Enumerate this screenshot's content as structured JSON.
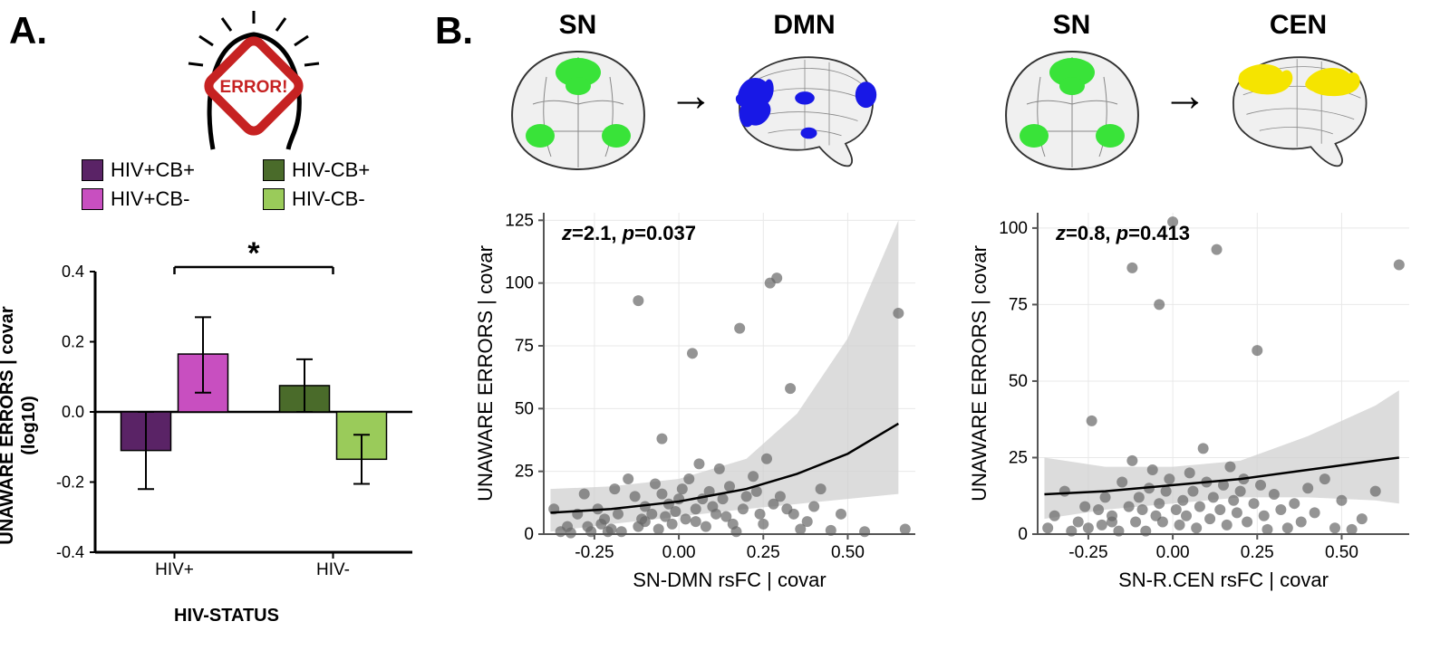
{
  "panel_labels": {
    "A": "A.",
    "B": "B."
  },
  "colors": {
    "hiv_p_cb_p": "#5a2366",
    "hiv_p_cb_m": "#c84fc0",
    "hiv_m_cb_p": "#4a6b2a",
    "hiv_m_cb_m": "#9acb5a",
    "sn_green": "#39e339",
    "dmn_blue": "#1818e6",
    "cen_yellow": "#f5e400",
    "scatter_dot": "#666666",
    "ci_fill": "#d0d0d0",
    "bg": "#ffffff"
  },
  "legend_a": {
    "items": [
      {
        "key": "hiv_p_cb_p",
        "label": "HIV+CB+"
      },
      {
        "key": "hiv_m_cb_p",
        "label": "HIV-CB+"
      },
      {
        "key": "hiv_p_cb_m",
        "label": "HIV+CB-"
      },
      {
        "key": "hiv_m_cb_m",
        "label": "HIV-CB-"
      }
    ]
  },
  "bar_chart": {
    "ylabel_line1": "UNAWARE ERRORS | covar",
    "ylabel_line2": "(log10)",
    "xlabel": "HIV-STATUS",
    "ylim": [
      -0.4,
      0.4
    ],
    "yticks": [
      -0.4,
      -0.2,
      0,
      0.2,
      0.4
    ],
    "x_groups": [
      "HIV+",
      "HIV-"
    ],
    "sig_marker": "*",
    "bars": [
      {
        "group": 0,
        "sub": 0,
        "color_key": "hiv_p_cb_p",
        "value": -0.11,
        "err_lo": 0.11,
        "err_hi": 0.11
      },
      {
        "group": 0,
        "sub": 1,
        "color_key": "hiv_p_cb_m",
        "value": 0.165,
        "err_lo": 0.11,
        "err_hi": 0.105
      },
      {
        "group": 1,
        "sub": 0,
        "color_key": "hiv_m_cb_p",
        "value": 0.075,
        "err_lo": 0.075,
        "err_hi": 0.075
      },
      {
        "group": 1,
        "sub": 1,
        "color_key": "hiv_m_cb_m",
        "value": -0.135,
        "err_lo": 0.07,
        "err_hi": 0.07
      }
    ]
  },
  "brain_labels": {
    "SN": "SN",
    "DMN": "DMN",
    "CEN": "CEN"
  },
  "error_text": "ERROR!",
  "scatter1": {
    "ylabel": "UNAWARE ERRORS | covar",
    "xlabel": "SN-DMN rsFC | covar",
    "xlim": [
      -0.4,
      0.7
    ],
    "ylim": [
      0,
      128
    ],
    "xticks": [
      -0.25,
      0.0,
      0.25,
      0.5
    ],
    "yticks": [
      0,
      25,
      50,
      75,
      100,
      125
    ],
    "stat_z": "2.1",
    "stat_p": "0.037",
    "curve": [
      [
        -0.38,
        8.5
      ],
      [
        -0.2,
        10
      ],
      [
        0,
        13
      ],
      [
        0.2,
        18
      ],
      [
        0.35,
        24
      ],
      [
        0.5,
        32
      ],
      [
        0.65,
        44
      ]
    ],
    "ci_upper": [
      [
        -0.38,
        18
      ],
      [
        -0.2,
        19
      ],
      [
        0,
        22
      ],
      [
        0.2,
        30
      ],
      [
        0.35,
        48
      ],
      [
        0.5,
        78
      ],
      [
        0.65,
        125
      ]
    ],
    "ci_lower": [
      [
        -0.38,
        1
      ],
      [
        -0.2,
        4
      ],
      [
        0,
        7
      ],
      [
        0.2,
        10
      ],
      [
        0.35,
        12
      ],
      [
        0.5,
        14
      ],
      [
        0.65,
        16
      ]
    ],
    "points": [
      [
        -0.37,
        10
      ],
      [
        -0.35,
        1
      ],
      [
        -0.33,
        3
      ],
      [
        -0.32,
        0.5
      ],
      [
        -0.3,
        8
      ],
      [
        -0.28,
        16
      ],
      [
        -0.27,
        3
      ],
      [
        -0.26,
        1
      ],
      [
        -0.24,
        10
      ],
      [
        -0.23,
        4
      ],
      [
        -0.22,
        6
      ],
      [
        -0.21,
        1
      ],
      [
        -0.2,
        2
      ],
      [
        -0.19,
        18
      ],
      [
        -0.18,
        8
      ],
      [
        -0.17,
        1
      ],
      [
        -0.15,
        22
      ],
      [
        -0.13,
        15
      ],
      [
        -0.12,
        93
      ],
      [
        -0.12,
        3
      ],
      [
        -0.11,
        6
      ],
      [
        -0.1,
        11
      ],
      [
        -0.1,
        5
      ],
      [
        -0.08,
        8
      ],
      [
        -0.07,
        20
      ],
      [
        -0.06,
        2
      ],
      [
        -0.05,
        38
      ],
      [
        -0.05,
        16
      ],
      [
        -0.04,
        7
      ],
      [
        -0.03,
        12
      ],
      [
        -0.02,
        4
      ],
      [
        -0.01,
        9
      ],
      [
        0.0,
        14
      ],
      [
        0.01,
        18
      ],
      [
        0.02,
        6
      ],
      [
        0.03,
        22
      ],
      [
        0.04,
        72
      ],
      [
        0.05,
        10
      ],
      [
        0.05,
        5
      ],
      [
        0.06,
        28
      ],
      [
        0.07,
        14
      ],
      [
        0.08,
        3
      ],
      [
        0.09,
        17
      ],
      [
        0.1,
        11
      ],
      [
        0.11,
        8
      ],
      [
        0.12,
        26
      ],
      [
        0.13,
        14
      ],
      [
        0.14,
        7
      ],
      [
        0.15,
        19
      ],
      [
        0.16,
        4
      ],
      [
        0.17,
        1
      ],
      [
        0.18,
        82
      ],
      [
        0.19,
        10
      ],
      [
        0.2,
        15
      ],
      [
        0.22,
        23
      ],
      [
        0.23,
        17
      ],
      [
        0.24,
        8
      ],
      [
        0.25,
        4
      ],
      [
        0.26,
        30
      ],
      [
        0.27,
        100
      ],
      [
        0.28,
        12
      ],
      [
        0.29,
        102
      ],
      [
        0.3,
        15
      ],
      [
        0.32,
        10
      ],
      [
        0.33,
        58
      ],
      [
        0.34,
        8
      ],
      [
        0.36,
        2
      ],
      [
        0.38,
        5
      ],
      [
        0.4,
        11
      ],
      [
        0.42,
        18
      ],
      [
        0.45,
        1.5
      ],
      [
        0.48,
        8
      ],
      [
        0.55,
        1
      ],
      [
        0.65,
        88
      ],
      [
        0.67,
        2
      ]
    ]
  },
  "scatter2": {
    "ylabel": "UNAWARE ERRORS | covar",
    "xlabel": "SN-R.CEN rsFC | covar",
    "xlim": [
      -0.4,
      0.7
    ],
    "ylim": [
      0,
      105
    ],
    "xticks": [
      -0.25,
      0.0,
      0.25,
      0.5
    ],
    "yticks": [
      0,
      25,
      50,
      75,
      100
    ],
    "stat_z": "0.8",
    "stat_p": "0.413",
    "curve": [
      [
        -0.38,
        13
      ],
      [
        -0.2,
        14
      ],
      [
        0,
        16
      ],
      [
        0.2,
        18
      ],
      [
        0.4,
        21
      ],
      [
        0.6,
        24
      ],
      [
        0.67,
        25
      ]
    ],
    "ci_upper": [
      [
        -0.38,
        25
      ],
      [
        -0.2,
        22
      ],
      [
        0,
        22
      ],
      [
        0.2,
        24
      ],
      [
        0.4,
        32
      ],
      [
        0.6,
        42
      ],
      [
        0.67,
        47
      ]
    ],
    "ci_lower": [
      [
        -0.38,
        5
      ],
      [
        -0.2,
        8
      ],
      [
        0,
        10
      ],
      [
        0.2,
        12
      ],
      [
        0.4,
        12
      ],
      [
        0.6,
        11
      ],
      [
        0.67,
        10
      ]
    ],
    "points": [
      [
        -0.37,
        2
      ],
      [
        -0.35,
        6
      ],
      [
        -0.32,
        14
      ],
      [
        -0.3,
        1
      ],
      [
        -0.28,
        4
      ],
      [
        -0.26,
        9
      ],
      [
        -0.25,
        2
      ],
      [
        -0.24,
        37
      ],
      [
        -0.22,
        8
      ],
      [
        -0.21,
        3
      ],
      [
        -0.2,
        12
      ],
      [
        -0.18,
        6
      ],
      [
        -0.18,
        4
      ],
      [
        -0.16,
        1
      ],
      [
        -0.15,
        17
      ],
      [
        -0.13,
        9
      ],
      [
        -0.12,
        24
      ],
      [
        -0.12,
        87
      ],
      [
        -0.11,
        4
      ],
      [
        -0.1,
        12
      ],
      [
        -0.09,
        8
      ],
      [
        -0.08,
        1
      ],
      [
        -0.07,
        15
      ],
      [
        -0.06,
        21
      ],
      [
        -0.05,
        6
      ],
      [
        -0.04,
        75
      ],
      [
        -0.04,
        10
      ],
      [
        -0.03,
        4
      ],
      [
        -0.02,
        14
      ],
      [
        -0.01,
        18
      ],
      [
        0.0,
        102
      ],
      [
        0.01,
        8
      ],
      [
        0.02,
        3
      ],
      [
        0.03,
        11
      ],
      [
        0.04,
        6
      ],
      [
        0.05,
        20
      ],
      [
        0.06,
        14
      ],
      [
        0.07,
        2
      ],
      [
        0.08,
        9
      ],
      [
        0.09,
        28
      ],
      [
        0.1,
        17
      ],
      [
        0.11,
        5
      ],
      [
        0.12,
        12
      ],
      [
        0.13,
        93
      ],
      [
        0.14,
        8
      ],
      [
        0.15,
        16
      ],
      [
        0.16,
        3
      ],
      [
        0.17,
        22
      ],
      [
        0.18,
        11
      ],
      [
        0.19,
        7
      ],
      [
        0.2,
        14
      ],
      [
        0.21,
        18
      ],
      [
        0.22,
        4
      ],
      [
        0.24,
        10
      ],
      [
        0.25,
        60
      ],
      [
        0.26,
        16
      ],
      [
        0.27,
        6
      ],
      [
        0.28,
        1.5
      ],
      [
        0.3,
        13
      ],
      [
        0.32,
        8
      ],
      [
        0.34,
        2
      ],
      [
        0.36,
        10
      ],
      [
        0.38,
        4
      ],
      [
        0.4,
        15
      ],
      [
        0.42,
        7
      ],
      [
        0.45,
        18
      ],
      [
        0.48,
        2
      ],
      [
        0.5,
        11
      ],
      [
        0.53,
        1.5
      ],
      [
        0.56,
        5
      ],
      [
        0.6,
        14
      ],
      [
        0.67,
        88
      ]
    ]
  }
}
